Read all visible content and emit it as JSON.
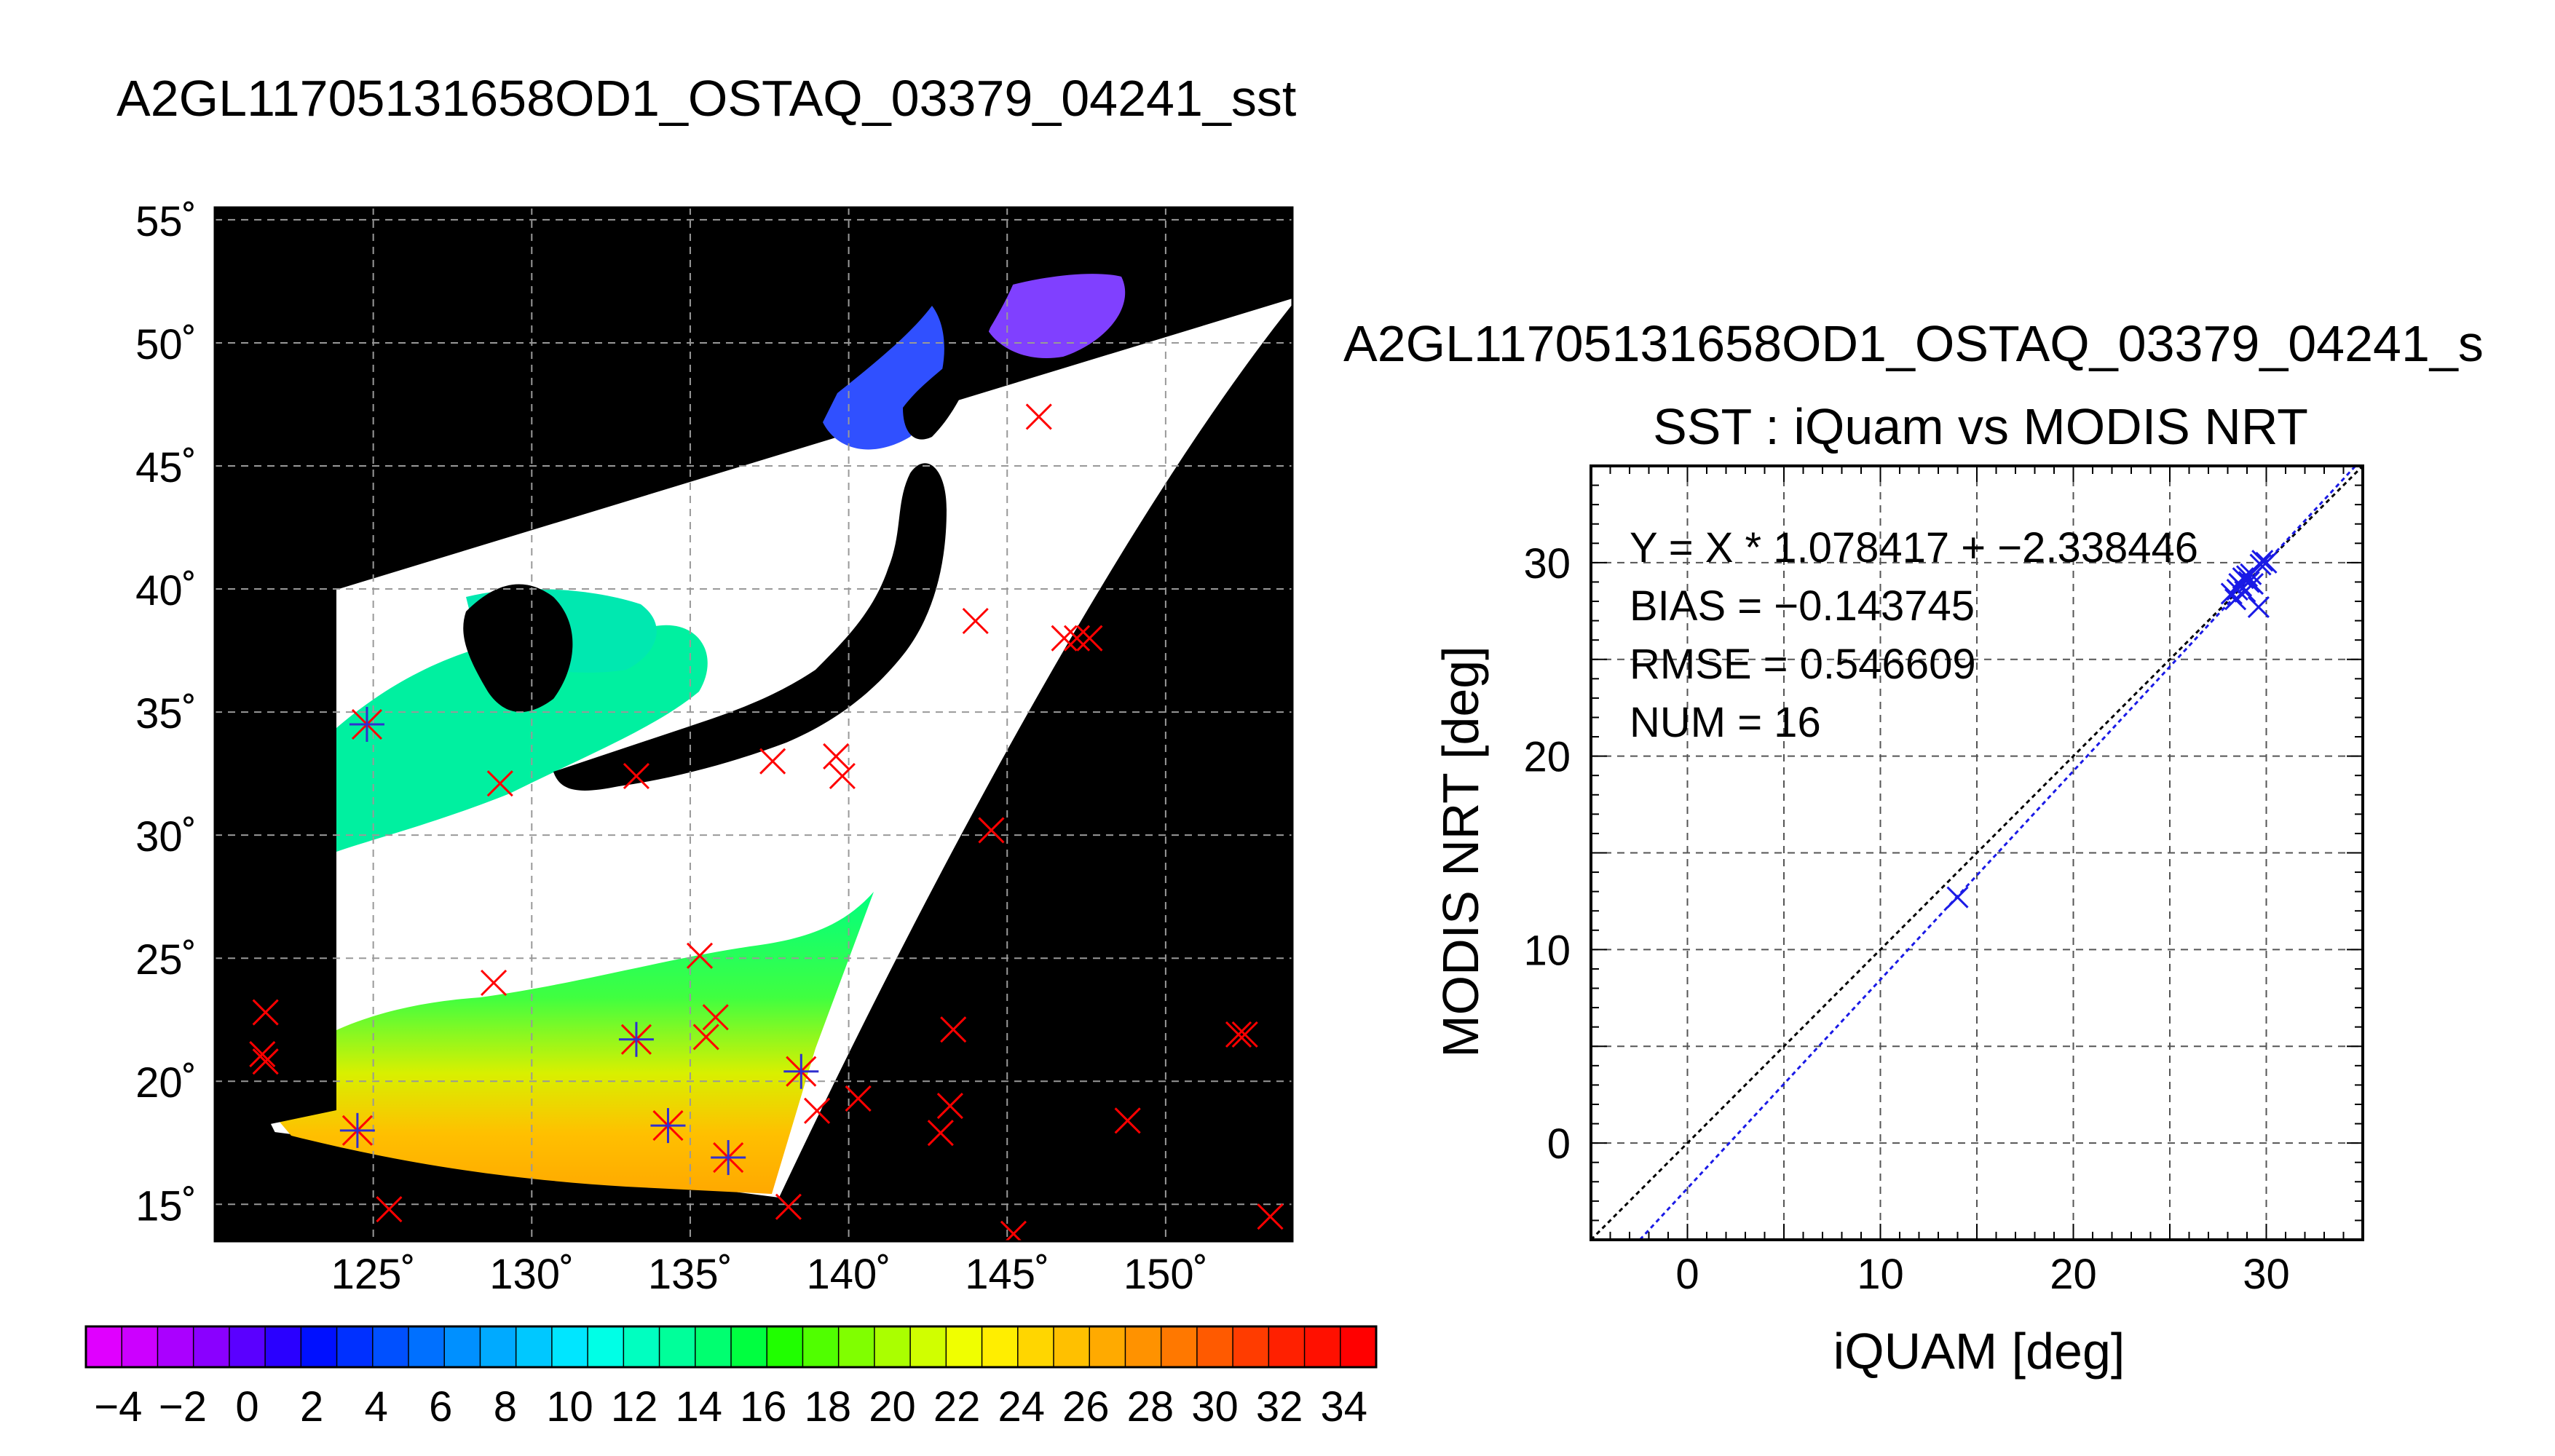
{
  "page": {
    "title": "A2GL11705131658OD1_OSTAQ_03379_04241_sst"
  },
  "map": {
    "lat_tick_labels": [
      "55˚",
      "50˚",
      "45˚",
      "40˚",
      "35˚",
      "30˚",
      "25˚",
      "20˚",
      "15˚"
    ],
    "lat_ticks": [
      55,
      50,
      45,
      40,
      35,
      30,
      25,
      20,
      15
    ],
    "lon_tick_labels": [
      "125˚",
      "130˚",
      "135˚",
      "140˚",
      "145˚",
      "150˚"
    ],
    "lon_ticks": [
      125,
      130,
      135,
      140,
      145,
      150
    ],
    "lon_range": [
      120,
      154
    ],
    "lat_range": [
      13.5,
      55.5
    ],
    "grid": true,
    "colors": {
      "land": "#000000",
      "cloud": "#ffffff",
      "outside_swath": "#000000",
      "grid": "#999999"
    },
    "red_markers": [
      [
        146.0,
        47.0
      ],
      [
        144.0,
        38.7
      ],
      [
        146.8,
        38.0
      ],
      [
        147.2,
        38.0
      ],
      [
        147.6,
        38.0
      ],
      [
        137.6,
        33.0
      ],
      [
        139.6,
        33.2
      ],
      [
        139.8,
        32.4
      ],
      [
        133.3,
        32.4
      ],
      [
        129.0,
        32.1
      ],
      [
        144.5,
        30.2
      ],
      [
        135.3,
        25.1
      ],
      [
        128.8,
        24.0
      ],
      [
        121.6,
        22.8
      ],
      [
        121.5,
        21.1
      ],
      [
        121.6,
        20.8
      ],
      [
        143.3,
        22.1
      ],
      [
        135.8,
        22.6
      ],
      [
        135.5,
        21.8
      ],
      [
        152.3,
        21.9
      ],
      [
        152.5,
        21.9
      ],
      [
        140.3,
        19.3
      ],
      [
        139.0,
        18.8
      ],
      [
        143.2,
        19.0
      ],
      [
        142.9,
        17.9
      ],
      [
        148.8,
        18.4
      ],
      [
        125.5,
        14.8
      ],
      [
        138.1,
        14.9
      ],
      [
        145.2,
        13.8
      ],
      [
        153.3,
        14.5
      ]
    ],
    "matchup_markers": [
      [
        124.8,
        34.5
      ],
      [
        124.5,
        18.0
      ],
      [
        133.3,
        21.7
      ],
      [
        134.3,
        18.2
      ],
      [
        136.2,
        16.9
      ],
      [
        138.5,
        20.4
      ]
    ]
  },
  "colorbar": {
    "tick_labels": [
      "−4",
      "−2",
      "0",
      "2",
      "4",
      "6",
      "8",
      "10",
      "12",
      "14",
      "16",
      "18",
      "20",
      "22",
      "24",
      "26",
      "28",
      "30",
      "32",
      "34"
    ],
    "range": [
      -5,
      35
    ],
    "colors": [
      "#e000ff",
      "#cc00ff",
      "#aa00ff",
      "#8a00ff",
      "#5a00ff",
      "#2a00ff",
      "#0010ff",
      "#0030ff",
      "#0050ff",
      "#0070ff",
      "#0090ff",
      "#00aaff",
      "#00c8ff",
      "#00e6ff",
      "#00ffe6",
      "#00ffc0",
      "#00ff9a",
      "#00ff70",
      "#00ff40",
      "#20ff00",
      "#50ff00",
      "#80ff00",
      "#aaff00",
      "#d0ff00",
      "#f0ff00",
      "#ffee00",
      "#ffd600",
      "#ffc000",
      "#ffaa00",
      "#ff9200",
      "#ff7800",
      "#ff5a00",
      "#ff3c00",
      "#ff2000",
      "#ff1000",
      "#ff0000"
    ]
  },
  "chart_data": {
    "type": "scatter",
    "title_top": "A2GL11705131658OD1_OSTAQ_03379_04241_s",
    "title": "SST : iQuam vs MODIS NRT",
    "xlabel": "iQUAM [deg]",
    "ylabel": "MODIS NRT [deg]",
    "xlim": [
      -5,
      35
    ],
    "ylim": [
      -5,
      35
    ],
    "x_ticks": [
      0,
      10,
      20,
      30
    ],
    "y_ticks": [
      0,
      10,
      20,
      30
    ],
    "x_tick_labels": [
      "0",
      "10",
      "20",
      "30"
    ],
    "y_tick_labels": [
      "0",
      "10",
      "20",
      "30"
    ],
    "grid": true,
    "stats": {
      "line1": "Y = X * 1.078417 + −2.338446",
      "line2": "BIAS = −0.143745",
      "line3": "RMSE = 0.546609",
      "line4": "NUM = 16"
    },
    "fit": {
      "slope": 1.078417,
      "intercept": -2.338446
    },
    "bias": -0.143745,
    "rmse": 0.546609,
    "num": 16,
    "points_x": [
      14.0,
      28.2,
      28.5,
      28.6,
      28.7,
      28.8,
      28.9,
      29.0,
      29.1,
      29.2,
      29.3,
      29.6,
      29.7,
      29.8,
      30.0,
      28.4
    ],
    "points_y": [
      12.7,
      28.4,
      28.6,
      28.9,
      28.8,
      29.2,
      28.5,
      29.3,
      29.0,
      29.4,
      28.9,
      27.7,
      29.9,
      30.1,
      30.0,
      28.1
    ],
    "colors": {
      "points": "#1a1ae6",
      "fit_line": "#1a1ae6",
      "one_to_one": "#000000"
    }
  }
}
